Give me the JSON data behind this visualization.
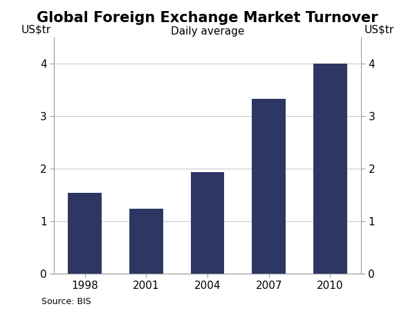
{
  "title": "Global Foreign Exchange Market Turnover",
  "subtitle": "Daily average",
  "ylabel_left": "US$tr",
  "ylabel_right": "US$tr",
  "source": "Source: BIS",
  "categories": [
    "1998",
    "2001",
    "2004",
    "2007",
    "2010"
  ],
  "values": [
    1.54,
    1.24,
    1.93,
    3.33,
    4.0
  ],
  "bar_color": "#2E3764",
  "ylim": [
    0,
    4.5
  ],
  "yticks": [
    0,
    1,
    2,
    3,
    4
  ],
  "background_color": "#ffffff",
  "title_fontsize": 15,
  "subtitle_fontsize": 11,
  "tick_fontsize": 11,
  "label_fontsize": 11,
  "source_fontsize": 9
}
